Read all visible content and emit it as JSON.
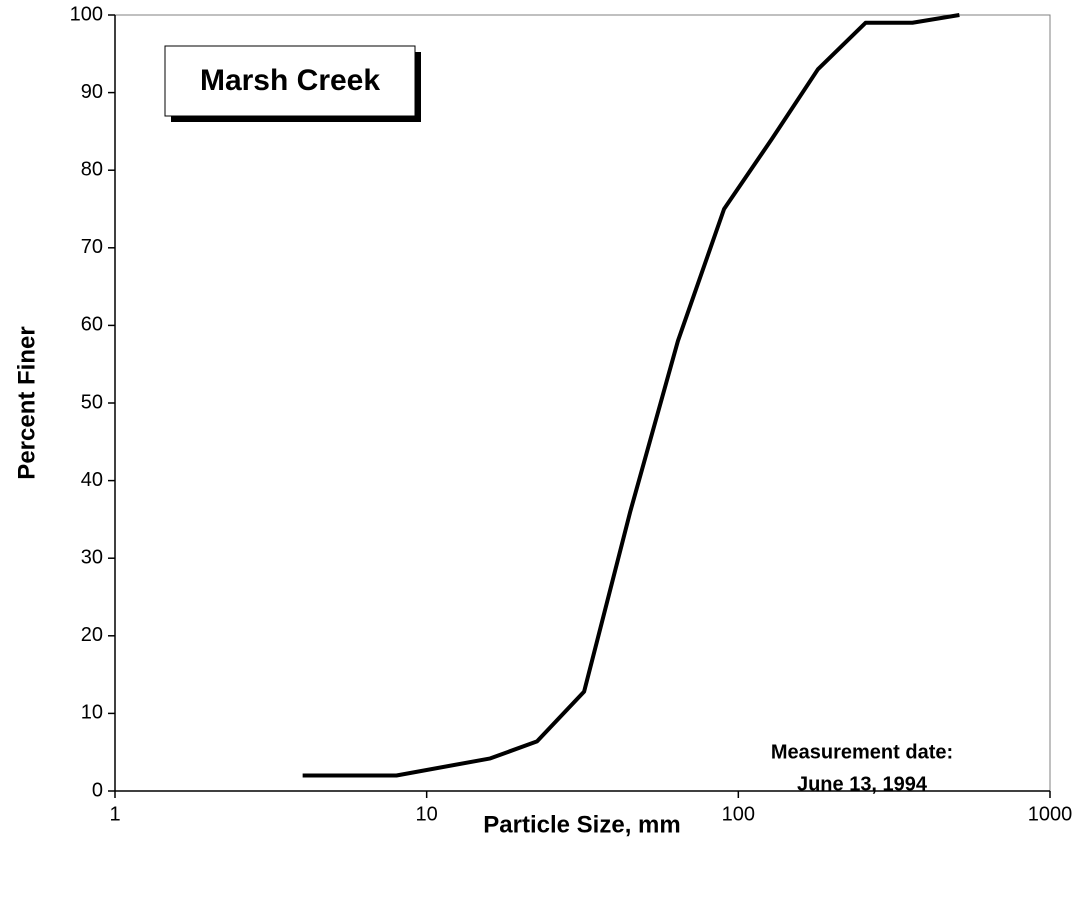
{
  "chart_data": {
    "type": "line",
    "title": "Marsh Creek",
    "annotation": [
      "Measurement date:",
      "June 13, 1994"
    ],
    "xlabel": "Particle Size, mm",
    "ylabel": "Percent Finer",
    "xscale": "log",
    "x": [
      4,
      8,
      16,
      22.6,
      32,
      45,
      64,
      90,
      128,
      180,
      256,
      362,
      512
    ],
    "values": [
      2,
      2,
      4.2,
      6.4,
      12.8,
      36,
      58,
      75,
      84,
      93,
      99,
      99,
      100
    ],
    "color": "#000000",
    "xlim": [
      1,
      1000
    ],
    "xticks": [
      1,
      10,
      100,
      1000
    ],
    "ylim": [
      0,
      100
    ],
    "yticks": [
      0,
      10,
      20,
      30,
      40,
      50,
      60,
      70,
      80,
      90,
      100
    ],
    "grid": false
  }
}
